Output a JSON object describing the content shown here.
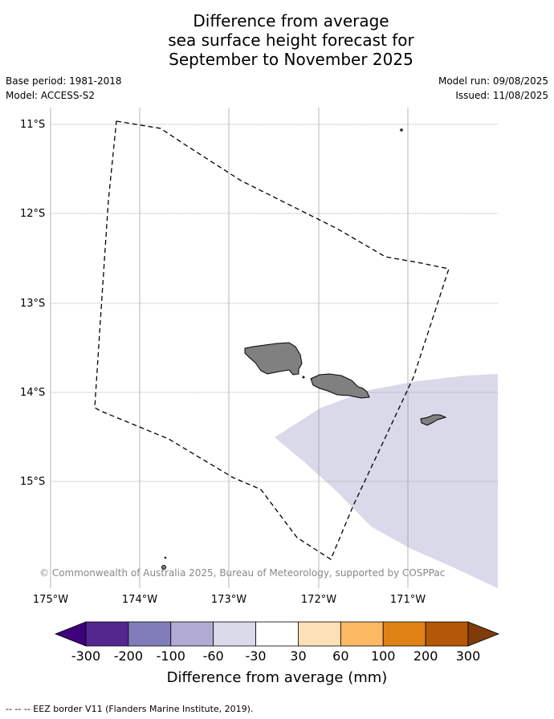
{
  "title": {
    "line1": "Difference from average",
    "line2": "sea surface height forecast for",
    "line3": "September to November 2025"
  },
  "meta": {
    "base_period": "Base period: 1981-2018",
    "model": "Model: ACCESS-S2",
    "model_run": "Model run: 09/08/2025",
    "issued": "Issued: 11/08/2025"
  },
  "map": {
    "lat_labels": [
      "11°S",
      "12°S",
      "13°S",
      "14°S",
      "15°S"
    ],
    "lon_labels": [
      "175°W",
      "174°W",
      "173°W",
      "172°W",
      "171°W"
    ],
    "copyright": "© Commonwealth of Australia 2025, Bureau of Meteorology, supported by COSPPac",
    "anomaly_fill_color": "#d9d9ea",
    "land_color": "#808080"
  },
  "colorbar": {
    "title": "Difference from average (mm)",
    "ticks": [
      "-300",
      "-200",
      "-100",
      "-60",
      "-30",
      "30",
      "60",
      "100",
      "200",
      "300"
    ],
    "colors": [
      "#3f007d",
      "#54278f",
      "#807dba",
      "#b1abd3",
      "#d9d9ea",
      "#ffffff",
      "#fee0b6",
      "#fdb863",
      "#e08214",
      "#b35806",
      "#7f3b08"
    ]
  },
  "footnote": "--  --  -- EEZ border V11 (Flanders Marine Institute, 2019)."
}
